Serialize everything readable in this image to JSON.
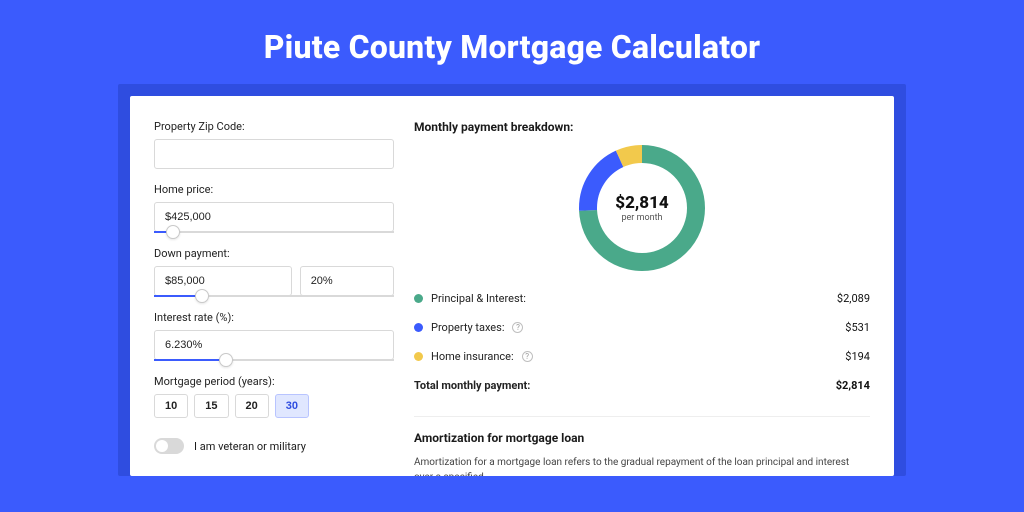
{
  "colors": {
    "page_bg": "#3b5bfd",
    "frame_bg": "#2f4de0",
    "card_bg": "#ffffff",
    "border": "#d9d9d9",
    "accent": "#3b5bfd",
    "text": "#1b1b1b"
  },
  "title": "Piute County Mortgage Calculator",
  "form": {
    "zip": {
      "label": "Property Zip Code:",
      "value": ""
    },
    "home_price": {
      "label": "Home price:",
      "value": "$425,000",
      "slider_pct": 8
    },
    "down_payment": {
      "label": "Down payment:",
      "value": "$85,000",
      "pct": "20%",
      "slider_pct": 20
    },
    "interest_rate": {
      "label": "Interest rate (%):",
      "value": "6.230%",
      "slider_pct": 30
    },
    "period": {
      "label": "Mortgage period (years):",
      "options": [
        "10",
        "15",
        "20",
        "30"
      ],
      "selected": "30"
    },
    "veteran": {
      "label": "I am veteran or military",
      "checked": false
    }
  },
  "breakdown": {
    "title": "Monthly payment breakdown:",
    "donut": {
      "center_value": "$2,814",
      "center_sub": "per month",
      "stroke_width": 18,
      "slices": [
        {
          "key": "principal_interest",
          "color": "#4aa98a",
          "pct": 74.2
        },
        {
          "key": "property_taxes",
          "color": "#3b5bfd",
          "pct": 18.9
        },
        {
          "key": "home_insurance",
          "color": "#f2c94c",
          "pct": 6.9
        }
      ]
    },
    "rows": [
      {
        "dot": "#4aa98a",
        "label": "Principal & Interest:",
        "info": false,
        "value": "$2,089"
      },
      {
        "dot": "#3b5bfd",
        "label": "Property taxes:",
        "info": true,
        "value": "$531"
      },
      {
        "dot": "#f2c94c",
        "label": "Home insurance:",
        "info": true,
        "value": "$194"
      }
    ],
    "total": {
      "label": "Total monthly payment:",
      "value": "$2,814"
    }
  },
  "amortization": {
    "title": "Amortization for mortgage loan",
    "body": "Amortization for a mortgage loan refers to the gradual repayment of the loan principal and interest over a specified"
  }
}
